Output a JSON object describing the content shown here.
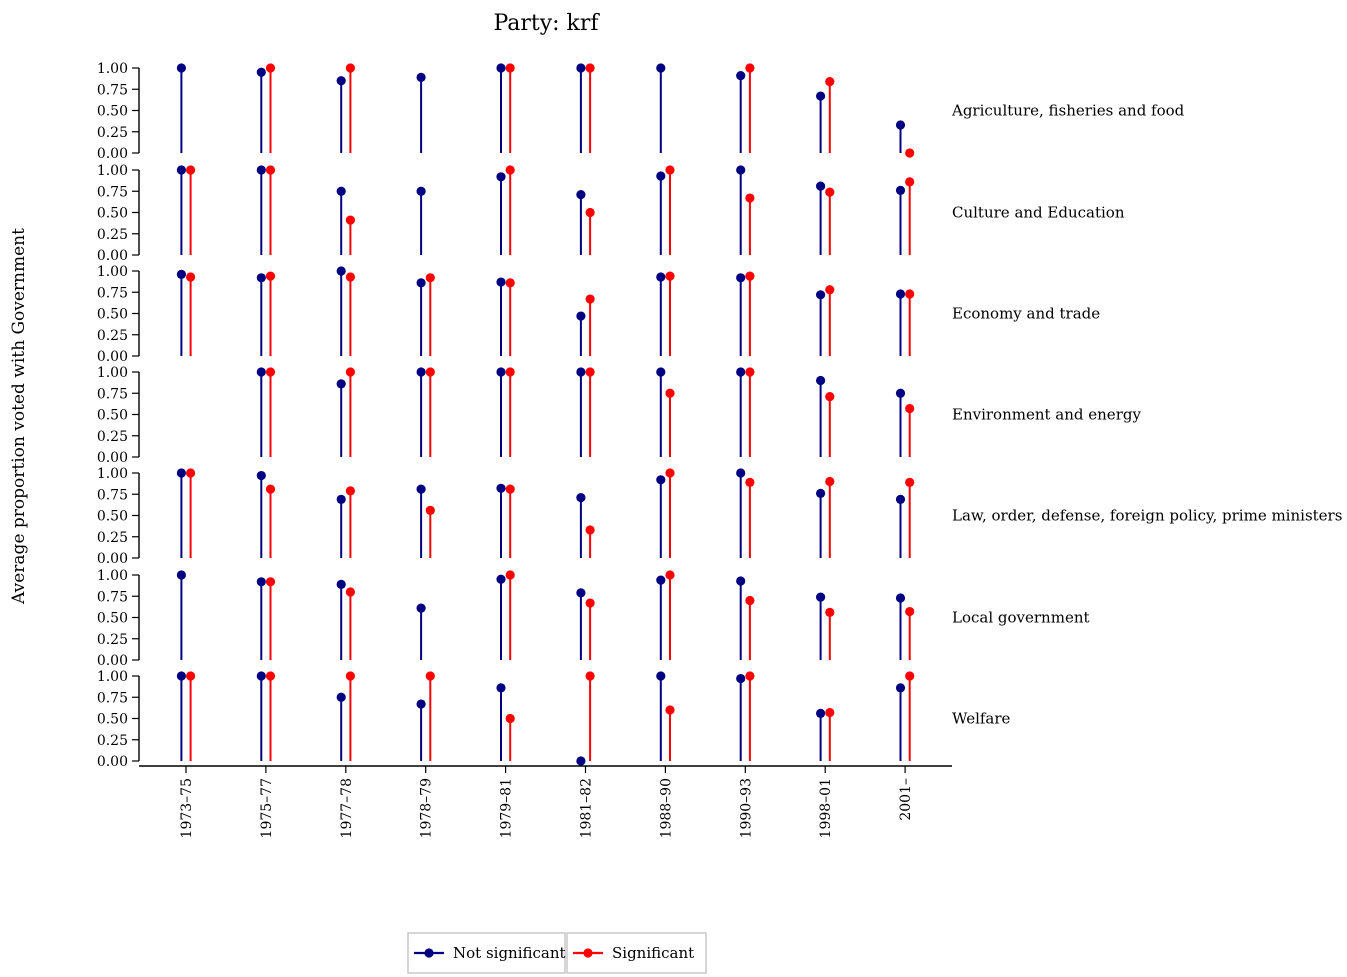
{
  "chart_data": {
    "type": "lollipop",
    "title": "Party: krf",
    "ylabel": "Average proportion voted with Government",
    "xlabel": "",
    "ylim": [
      0,
      1
    ],
    "yticks": [
      "0.00",
      "0.25",
      "0.50",
      "0.75",
      "1.00"
    ],
    "categories": [
      "1973–75",
      "1975–77",
      "1977–78",
      "1978–79",
      "1979–81",
      "1981–82",
      "1988–90",
      "1990–93",
      "1998–01",
      "2001–"
    ],
    "legend": {
      "position": "bottom",
      "entries": [
        {
          "name": "Not significant",
          "color": "#000080"
        },
        {
          "name": "Significant",
          "color": "#ff0000"
        }
      ]
    },
    "facets": [
      {
        "name": "Agriculture, fisheries and food",
        "series": [
          {
            "name": "Not significant",
            "values": [
              1.0,
              0.95,
              0.85,
              0.89,
              1.0,
              1.0,
              1.0,
              0.91,
              0.67,
              0.33
            ]
          },
          {
            "name": "Significant",
            "values": [
              null,
              1.0,
              1.0,
              null,
              1.0,
              1.0,
              null,
              1.0,
              0.84,
              0.0
            ]
          }
        ]
      },
      {
        "name": "Culture and Education",
        "series": [
          {
            "name": "Not significant",
            "values": [
              1.0,
              1.0,
              0.75,
              0.75,
              0.92,
              0.71,
              0.93,
              1.0,
              0.81,
              0.76
            ]
          },
          {
            "name": "Significant",
            "values": [
              1.0,
              1.0,
              0.41,
              null,
              1.0,
              0.5,
              1.0,
              0.67,
              0.74,
              0.86
            ]
          }
        ]
      },
      {
        "name": "Economy and trade",
        "series": [
          {
            "name": "Not significant",
            "values": [
              0.96,
              0.92,
              1.0,
              0.86,
              0.87,
              0.47,
              0.93,
              0.92,
              0.72,
              0.73
            ]
          },
          {
            "name": "Significant",
            "values": [
              0.93,
              0.94,
              0.93,
              0.92,
              0.86,
              0.67,
              0.94,
              0.94,
              0.78,
              0.73
            ]
          }
        ]
      },
      {
        "name": "Environment and energy",
        "series": [
          {
            "name": "Not significant",
            "values": [
              null,
              1.0,
              0.86,
              1.0,
              1.0,
              1.0,
              1.0,
              1.0,
              0.9,
              0.75
            ]
          },
          {
            "name": "Significant",
            "values": [
              null,
              1.0,
              1.0,
              1.0,
              1.0,
              1.0,
              0.75,
              1.0,
              0.71,
              0.57
            ]
          }
        ]
      },
      {
        "name": "Law, order, defense, foreign policy, prime ministers",
        "series": [
          {
            "name": "Not significant",
            "values": [
              1.0,
              0.97,
              0.69,
              0.81,
              0.82,
              0.71,
              0.92,
              1.0,
              0.76,
              0.69
            ]
          },
          {
            "name": "Significant",
            "values": [
              1.0,
              0.81,
              0.79,
              0.56,
              0.81,
              0.33,
              1.0,
              0.89,
              0.9,
              0.89
            ]
          }
        ]
      },
      {
        "name": "Local government",
        "series": [
          {
            "name": "Not significant",
            "values": [
              1.0,
              0.92,
              0.89,
              0.61,
              0.95,
              0.79,
              0.94,
              0.93,
              0.74,
              0.73
            ]
          },
          {
            "name": "Significant",
            "values": [
              null,
              0.92,
              0.8,
              null,
              1.0,
              0.67,
              1.0,
              0.7,
              0.56,
              0.57
            ]
          }
        ]
      },
      {
        "name": "Welfare",
        "series": [
          {
            "name": "Not significant",
            "values": [
              1.0,
              1.0,
              0.75,
              0.67,
              0.86,
              0.0,
              1.0,
              0.97,
              0.56,
              0.86
            ]
          },
          {
            "name": "Significant",
            "values": [
              1.0,
              1.0,
              1.0,
              1.0,
              0.5,
              1.0,
              0.6,
              1.0,
              0.57,
              1.0
            ]
          }
        ]
      }
    ]
  }
}
